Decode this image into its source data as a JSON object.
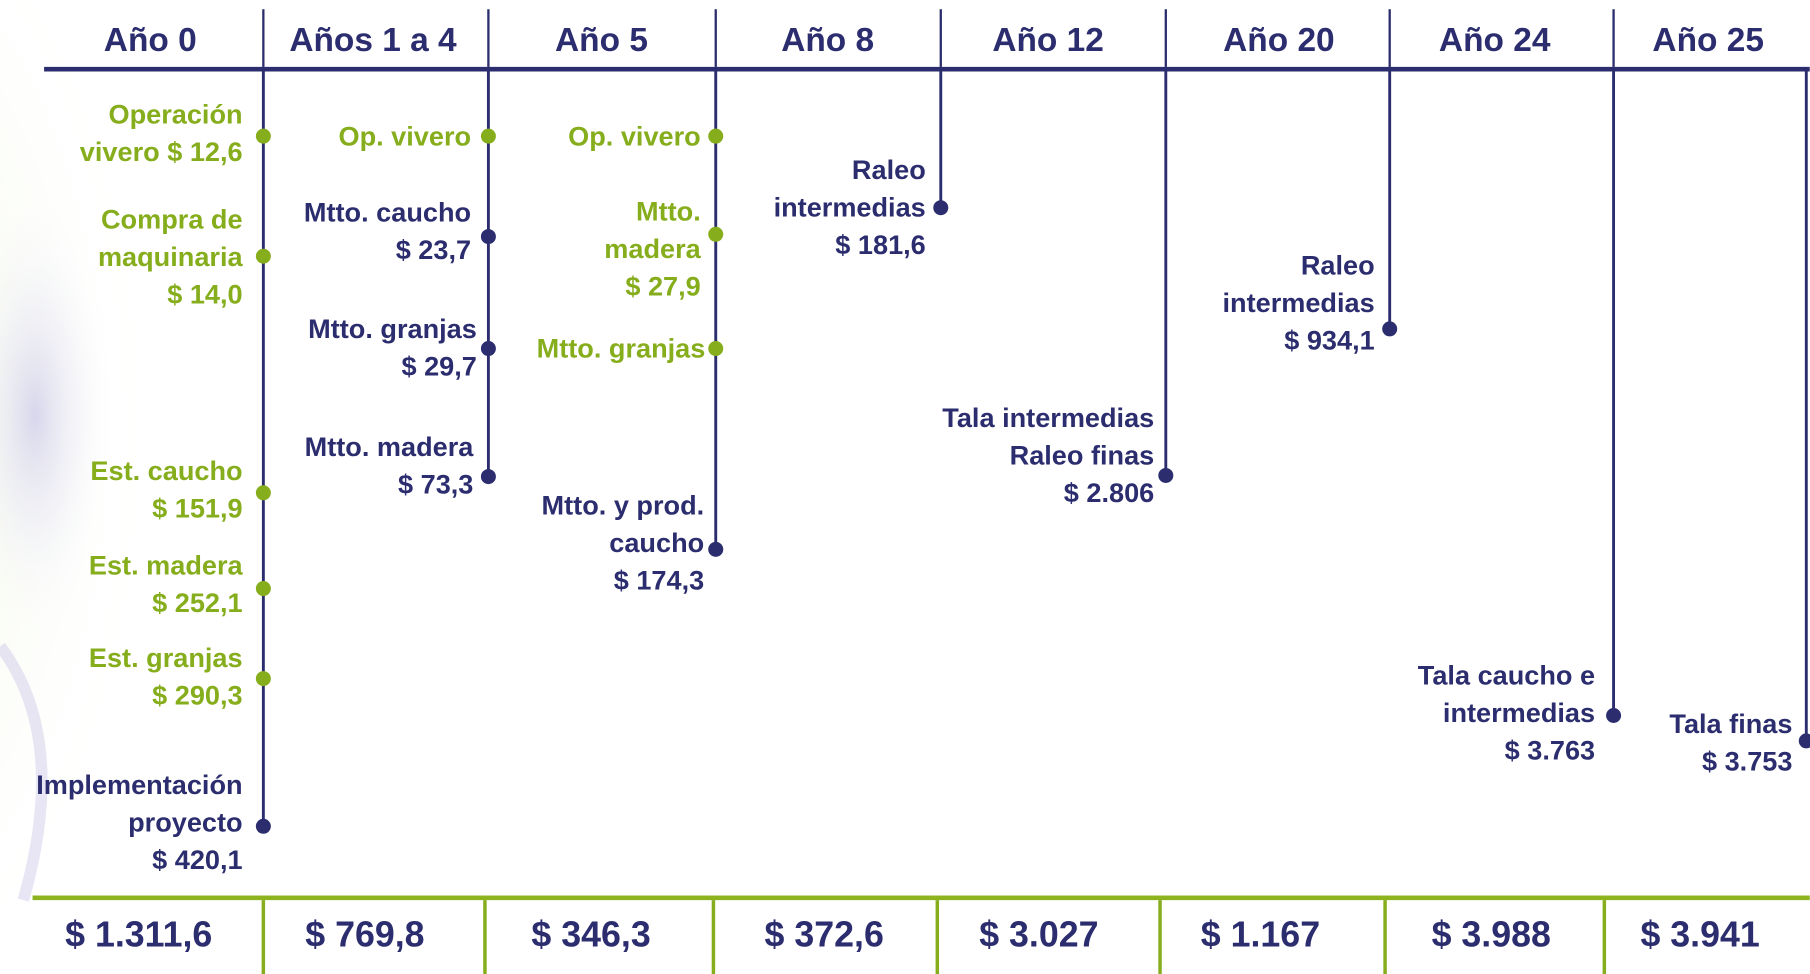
{
  "columns": [
    {
      "header": "Año 0",
      "total": "$ 1.311,6",
      "items": [
        {
          "lines": [
            "Operación",
            "vivero $ 12,6"
          ],
          "color": "#86ad1c"
        },
        {
          "lines": [
            "Compra de",
            "maquinaria",
            "$ 14,0"
          ],
          "color": "#86ad1c"
        },
        {
          "lines": [
            "Est. caucho",
            "$ 151,9"
          ],
          "color": "#86ad1c"
        },
        {
          "lines": [
            "Est. madera",
            "$ 252,1"
          ],
          "color": "#86ad1c"
        },
        {
          "lines": [
            "Est. granjas",
            "$ 290,3"
          ],
          "color": "#86ad1c"
        },
        {
          "lines": [
            "Implementación",
            "proyecto",
            "$ 420,1"
          ],
          "color": "#2b2d6e"
        }
      ]
    },
    {
      "header": "Años 1 a 4",
      "total": "$ 769,8",
      "items": [
        {
          "lines": [
            "Op. vivero"
          ],
          "color": "#86ad1c"
        },
        {
          "lines": [
            "Mtto. caucho",
            "$ 23,7"
          ],
          "color": "#2b2d6e"
        },
        {
          "lines": [
            "Mtto. granjas",
            "$ 29,7"
          ],
          "color": "#2b2d6e"
        },
        {
          "lines": [
            "Mtto. madera",
            "$ 73,3"
          ],
          "color": "#2b2d6e"
        }
      ]
    },
    {
      "header": "Año 5",
      "total": "$ 346,3",
      "items": [
        {
          "lines": [
            "Op. vivero"
          ],
          "color": "#86ad1c"
        },
        {
          "lines": [
            "Mtto.",
            "madera",
            "$ 27,9"
          ],
          "color": "#86ad1c"
        },
        {
          "lines": [
            "Mtto. granjas"
          ],
          "color": "#86ad1c"
        },
        {
          "lines": [
            "Mtto. y prod.",
            "caucho",
            "$ 174,3"
          ],
          "color": "#2b2d6e"
        }
      ]
    },
    {
      "header": "Año 8",
      "total": "$ 372,6",
      "items": [
        {
          "lines": [
            "Raleo",
            "intermedias",
            "$ 181,6"
          ],
          "color": "#2b2d6e"
        }
      ]
    },
    {
      "header": "Año 12",
      "total": "$ 3.027",
      "items": [
        {
          "lines": [
            "Tala intermedias",
            "Raleo finas",
            "$ 2.806"
          ],
          "color": "#2b2d6e"
        }
      ]
    },
    {
      "header": "Año 20",
      "total": "$ 1.167",
      "items": [
        {
          "lines": [
            "Raleo",
            "intermedias",
            "$ 934,1"
          ],
          "color": "#2b2d6e"
        }
      ]
    },
    {
      "header": "Año 24",
      "total": "$ 3.988",
      "items": [
        {
          "lines": [
            "Tala caucho e",
            "intermedias",
            "$ 3.763"
          ],
          "color": "#2b2d6e"
        }
      ]
    },
    {
      "header": "Año 25",
      "total": "$ 3.941",
      "items": [
        {
          "lines": [
            "Tala finas",
            "$ 3.753"
          ],
          "color": "#2b2d6e"
        }
      ]
    }
  ]
}
